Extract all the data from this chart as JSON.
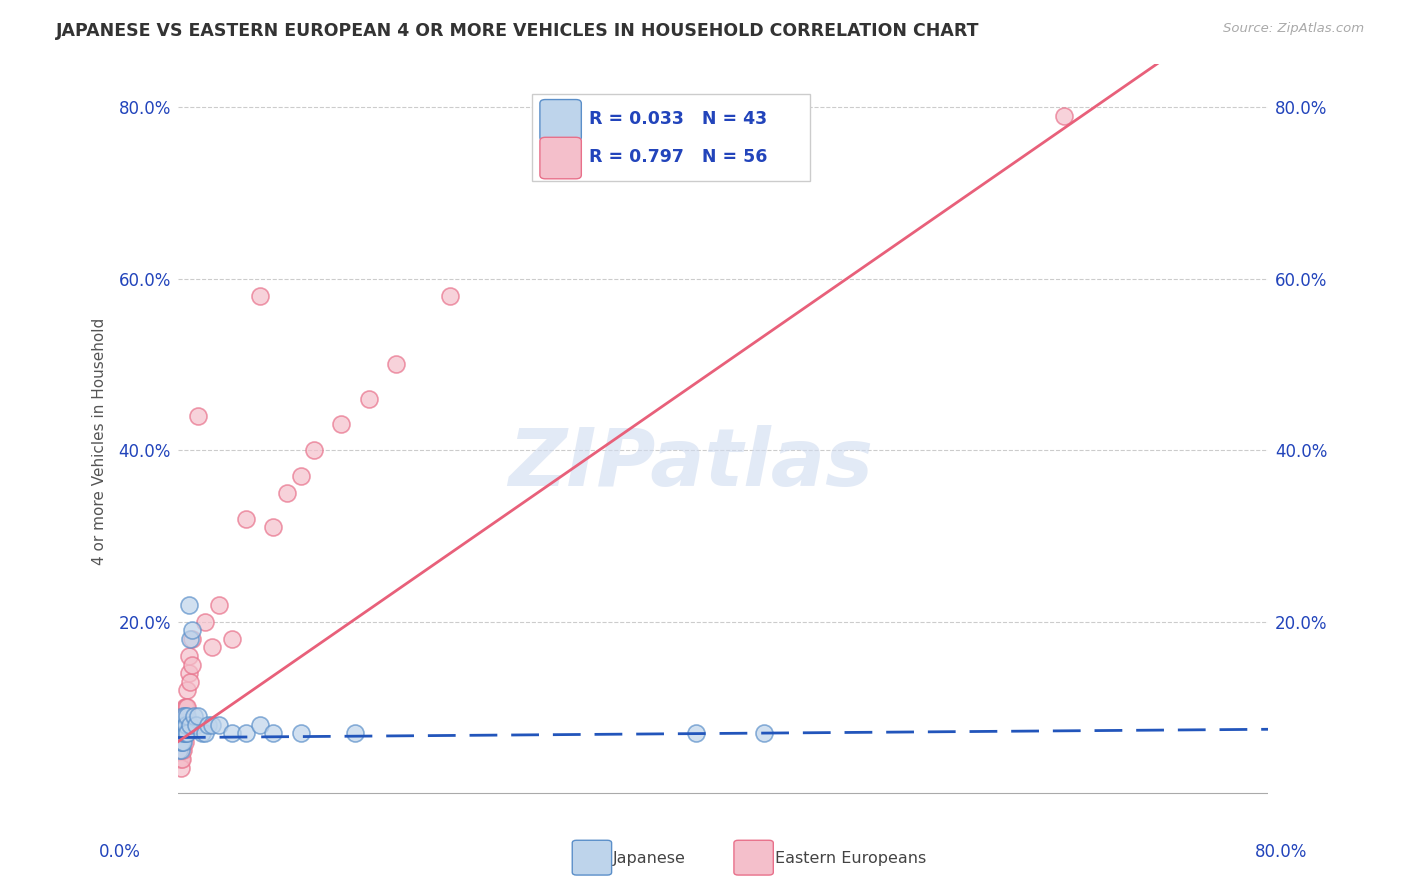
{
  "title": "JAPANESE VS EASTERN EUROPEAN 4 OR MORE VEHICLES IN HOUSEHOLD CORRELATION CHART",
  "source": "Source: ZipAtlas.com",
  "ylabel": "4 or more Vehicles in Household",
  "ytick_vals": [
    0.0,
    0.2,
    0.4,
    0.6,
    0.8
  ],
  "ytick_labels": [
    "0.0%",
    "20.0%",
    "40.0%",
    "60.0%",
    "80.0%"
  ],
  "xlim": [
    0,
    0.8
  ],
  "ylim": [
    -0.03,
    0.85
  ],
  "legend_R_japanese": "R = 0.033",
  "legend_N_japanese": "N = 43",
  "legend_R_eastern": "R = 0.797",
  "legend_N_eastern": "N = 56",
  "japanese_fill": "#bed4eb",
  "japanese_edge": "#5b8fc9",
  "eastern_fill": "#f4bfcb",
  "eastern_edge": "#e8708a",
  "japanese_line_color": "#2255bb",
  "eastern_line_color": "#e8607a",
  "legend_text_color": "#2244bb",
  "watermark_text": "ZIPatlas",
  "watermark_color": "#d0dcf0",
  "grid_color": "#cccccc",
  "bg_color": "#ffffff",
  "japanese_scatter": [
    [
      0.001,
      0.06
    ],
    [
      0.001,
      0.05
    ],
    [
      0.001,
      0.07
    ],
    [
      0.002,
      0.07
    ],
    [
      0.002,
      0.05
    ],
    [
      0.002,
      0.06
    ],
    [
      0.002,
      0.08
    ],
    [
      0.003,
      0.07
    ],
    [
      0.003,
      0.07
    ],
    [
      0.003,
      0.06
    ],
    [
      0.003,
      0.08
    ],
    [
      0.003,
      0.07
    ],
    [
      0.004,
      0.08
    ],
    [
      0.004,
      0.06
    ],
    [
      0.004,
      0.09
    ],
    [
      0.004,
      0.07
    ],
    [
      0.005,
      0.08
    ],
    [
      0.005,
      0.07
    ],
    [
      0.005,
      0.09
    ],
    [
      0.006,
      0.07
    ],
    [
      0.006,
      0.08
    ],
    [
      0.007,
      0.09
    ],
    [
      0.007,
      0.07
    ],
    [
      0.008,
      0.22
    ],
    [
      0.009,
      0.08
    ],
    [
      0.009,
      0.18
    ],
    [
      0.01,
      0.19
    ],
    [
      0.012,
      0.09
    ],
    [
      0.013,
      0.08
    ],
    [
      0.015,
      0.09
    ],
    [
      0.018,
      0.07
    ],
    [
      0.02,
      0.07
    ],
    [
      0.022,
      0.08
    ],
    [
      0.025,
      0.08
    ],
    [
      0.03,
      0.08
    ],
    [
      0.04,
      0.07
    ],
    [
      0.05,
      0.07
    ],
    [
      0.06,
      0.08
    ],
    [
      0.07,
      0.07
    ],
    [
      0.09,
      0.07
    ],
    [
      0.13,
      0.07
    ],
    [
      0.38,
      0.07
    ],
    [
      0.43,
      0.07
    ]
  ],
  "eastern_scatter": [
    [
      0.001,
      0.05
    ],
    [
      0.001,
      0.04
    ],
    [
      0.001,
      0.06
    ],
    [
      0.001,
      0.07
    ],
    [
      0.001,
      0.05
    ],
    [
      0.002,
      0.07
    ],
    [
      0.002,
      0.06
    ],
    [
      0.002,
      0.08
    ],
    [
      0.002,
      0.05
    ],
    [
      0.002,
      0.04
    ],
    [
      0.002,
      0.03
    ],
    [
      0.002,
      0.06
    ],
    [
      0.003,
      0.07
    ],
    [
      0.003,
      0.08
    ],
    [
      0.003,
      0.06
    ],
    [
      0.003,
      0.05
    ],
    [
      0.003,
      0.07
    ],
    [
      0.003,
      0.04
    ],
    [
      0.003,
      0.06
    ],
    [
      0.003,
      0.08
    ],
    [
      0.004,
      0.09
    ],
    [
      0.004,
      0.07
    ],
    [
      0.004,
      0.06
    ],
    [
      0.004,
      0.08
    ],
    [
      0.004,
      0.05
    ],
    [
      0.005,
      0.09
    ],
    [
      0.005,
      0.07
    ],
    [
      0.005,
      0.08
    ],
    [
      0.005,
      0.1
    ],
    [
      0.005,
      0.06
    ],
    [
      0.006,
      0.1
    ],
    [
      0.006,
      0.08
    ],
    [
      0.006,
      0.09
    ],
    [
      0.007,
      0.12
    ],
    [
      0.007,
      0.1
    ],
    [
      0.008,
      0.14
    ],
    [
      0.008,
      0.16
    ],
    [
      0.009,
      0.13
    ],
    [
      0.01,
      0.15
    ],
    [
      0.01,
      0.18
    ],
    [
      0.015,
      0.44
    ],
    [
      0.02,
      0.2
    ],
    [
      0.025,
      0.17
    ],
    [
      0.03,
      0.22
    ],
    [
      0.04,
      0.18
    ],
    [
      0.05,
      0.32
    ],
    [
      0.06,
      0.58
    ],
    [
      0.07,
      0.31
    ],
    [
      0.08,
      0.35
    ],
    [
      0.09,
      0.37
    ],
    [
      0.1,
      0.4
    ],
    [
      0.12,
      0.43
    ],
    [
      0.14,
      0.46
    ],
    [
      0.16,
      0.5
    ],
    [
      0.2,
      0.58
    ],
    [
      0.65,
      0.79
    ]
  ],
  "japanese_reg_slope": 0.012,
  "japanese_reg_intercept": 0.065,
  "eastern_reg_slope": 1.1,
  "eastern_reg_intercept": 0.06
}
